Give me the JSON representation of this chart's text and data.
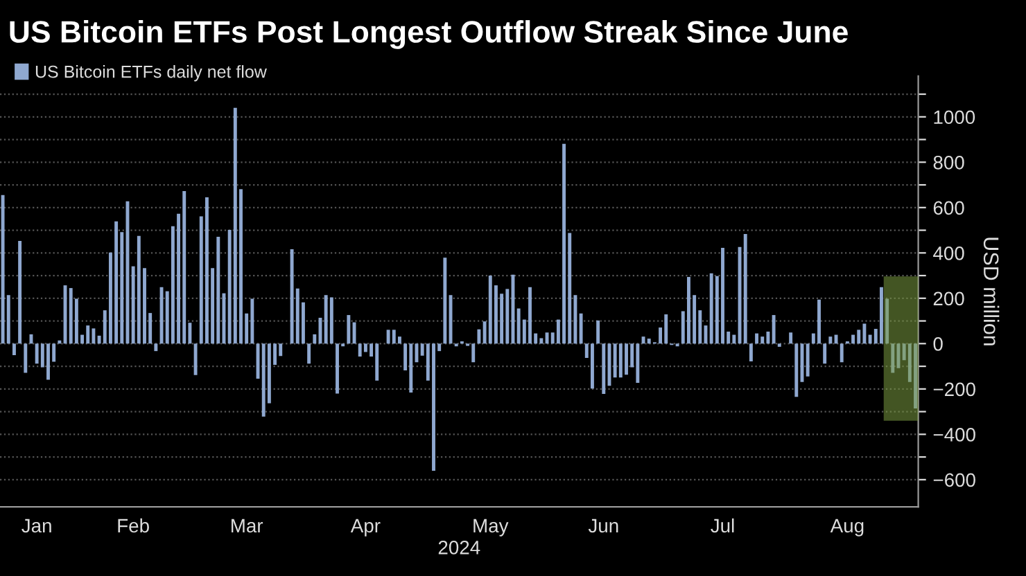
{
  "chart_data": {
    "type": "bar",
    "title": "US Bitcoin ETFs Post Longest Outflow Streak Since June",
    "xlabel": "2024",
    "ylabel": "USD million",
    "categories": [
      null,
      null,
      null,
      null,
      null,
      null,
      "Jan",
      null,
      null,
      null,
      null,
      null,
      null,
      null,
      null,
      null,
      null,
      null,
      null,
      null,
      null,
      null,
      null,
      "Feb",
      null,
      null,
      null,
      null,
      null,
      null,
      null,
      null,
      null,
      null,
      null,
      null,
      null,
      null,
      null,
      null,
      null,
      null,
      null,
      "Mar",
      null,
      null,
      null,
      null,
      null,
      null,
      null,
      null,
      null,
      null,
      null,
      null,
      null,
      null,
      null,
      null,
      null,
      null,
      null,
      null,
      "Apr",
      null,
      null,
      null,
      null,
      null,
      null,
      null,
      null,
      null,
      null,
      null,
      null,
      null,
      null,
      null,
      null,
      null,
      null,
      null,
      null,
      null,
      "May",
      null,
      null,
      null,
      null,
      null,
      null,
      null,
      null,
      null,
      null,
      null,
      null,
      null,
      null,
      null,
      null,
      null,
      null,
      null,
      "Jun",
      null,
      null,
      null,
      null,
      null,
      null,
      null,
      null,
      null,
      null,
      null,
      null,
      null,
      null,
      null,
      null,
      null,
      null,
      null,
      null,
      "Jul",
      null,
      null,
      null,
      null,
      null,
      null,
      null,
      null,
      null,
      null,
      null,
      null,
      null,
      null,
      null,
      null,
      null,
      null,
      null,
      null,
      null,
      "Aug",
      null,
      null,
      null,
      null,
      null,
      null,
      null,
      null,
      null,
      null,
      null,
      null
    ],
    "series": [
      {
        "name": "US Bitcoin ETFs daily net flow",
        "color": "#8fa8d0",
        "values": [
          655,
          214,
          -51,
          453,
          -129,
          41,
          -88,
          -104,
          -159,
          -80,
          14,
          257,
          245,
          198,
          39,
          80,
          67,
          35,
          147,
          402,
          539,
          492,
          628,
          341,
          475,
          333,
          135,
          -33,
          249,
          231,
          518,
          573,
          673,
          92,
          -139,
          561,
          645,
          333,
          471,
          222,
          502,
          1040,
          681,
          133,
          198,
          -155,
          -322,
          -263,
          -94,
          -55,
          0,
          416,
          243,
          182,
          -88,
          41,
          114,
          214,
          204,
          -220,
          -12,
          126,
          94,
          -57,
          -37,
          -57,
          -163,
          0,
          61,
          61,
          31,
          -118,
          -216,
          -82,
          -53,
          -163,
          -561,
          -33,
          379,
          214,
          -12,
          10,
          -10,
          -82,
          63,
          98,
          300,
          257,
          220,
          241,
          304,
          155,
          106,
          249,
          45,
          24,
          49,
          49,
          106,
          881,
          488,
          214,
          133,
          -63,
          -198,
          102,
          -222,
          -186,
          -149,
          -149,
          -137,
          -104,
          -173,
          31,
          22,
          6,
          71,
          129,
          -6,
          -12,
          143,
          294,
          214,
          147,
          80,
          310,
          298,
          422,
          53,
          39,
          426,
          483,
          -78,
          45,
          31,
          53,
          126,
          -14,
          0,
          49,
          -235,
          -169,
          -145,
          45,
          194,
          -88,
          31,
          39,
          -82,
          10,
          39,
          61,
          88,
          39,
          65,
          249,
          198,
          -129,
          -108,
          -73,
          -169,
          -286
        ]
      }
    ],
    "ylim": [
      -720,
      1180
    ],
    "yticks": [
      -600,
      {
        "value": -500,
        "label": null
      },
      -400,
      {
        "value": -300,
        "label": null
      },
      -200,
      {
        "value": -100,
        "label": null
      },
      0,
      {
        "value": 100,
        "label": null
      },
      200,
      {
        "value": 300,
        "label": null
      },
      400,
      {
        "value": 500,
        "label": null
      },
      600,
      {
        "value": 700,
        "label": null
      },
      800,
      {
        "value": 900,
        "label": null
      },
      1000,
      {
        "value": 1100,
        "label": null
      }
    ],
    "grid": "y",
    "legend": "top left"
  }
}
